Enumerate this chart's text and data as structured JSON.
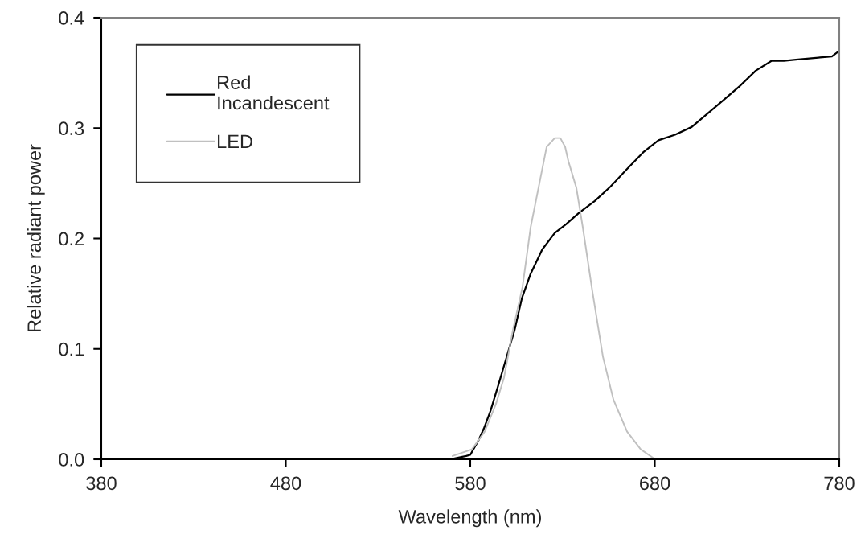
{
  "chart_data": {
    "type": "line",
    "xlabel": "Wavelength (nm)",
    "ylabel": "Relative radiant power",
    "xlim": [
      380,
      780
    ],
    "xticks": [
      380,
      480,
      580,
      680,
      780
    ],
    "ylim": [
      0,
      0.4
    ],
    "yticks": [
      {
        "value": 0,
        "label": "0.0"
      },
      0.1,
      0.2,
      0.3,
      0.4
    ],
    "grid": false,
    "legend": "top left",
    "line_style": "solid",
    "marker": "none",
    "series": [
      {
        "name": "Red\nIncandescent",
        "color": "#000000",
        "x": [
          569,
          577.8,
          580,
          584.4,
          587.4,
          591,
          595,
          599.6,
          604,
          608,
          612.7,
          619,
          625.8,
          632,
          638.8,
          647.5,
          656,
          665,
          673.7,
          682,
          691,
          700,
          708.5,
          717,
          726,
          734.7,
          743.4,
          750,
          756.5,
          769.5,
          776,
          780
        ],
        "values": [
          0,
          0.003,
          0.004,
          0.017,
          0.028,
          0.044,
          0.066,
          0.092,
          0.117,
          0.146,
          0.168,
          0.19,
          0.205,
          0.213,
          0.223,
          0.234,
          0.247,
          0.263,
          0.278,
          0.289,
          0.294,
          0.301,
          0.313,
          0.325,
          0.338,
          0.352,
          0.361,
          0.361,
          0.362,
          0.364,
          0.365,
          0.37
        ]
      },
      {
        "name": "LED",
        "color": "#c0c0c0",
        "x": [
          570.4,
          580.9,
          587.8,
          593.9,
          598.3,
          603.1,
          608.3,
          612.7,
          621.4,
          625.8,
          628.8,
          631.4,
          633.2,
          637.5,
          641.0,
          646.2,
          651.9,
          657.6,
          665.0,
          672.4,
          680.2
        ],
        "values": [
          0.003,
          0.009,
          0.025,
          0.05,
          0.074,
          0.117,
          0.156,
          0.21,
          0.283,
          0.291,
          0.291,
          0.283,
          0.27,
          0.246,
          0.21,
          0.152,
          0.093,
          0.054,
          0.025,
          0.009,
          0
        ]
      }
    ]
  }
}
